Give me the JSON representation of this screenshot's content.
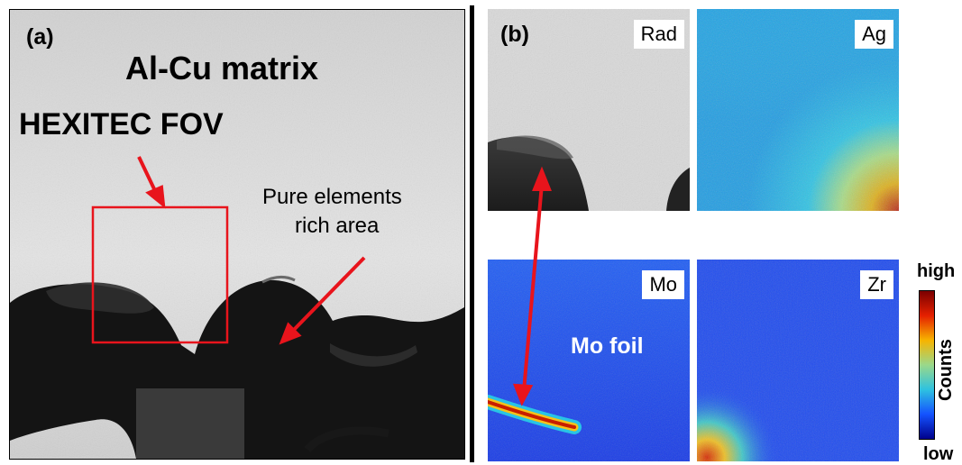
{
  "panel_a": {
    "label": "(a)",
    "title": "Al-Cu matrix",
    "fov_label": "HEXITEC FOV",
    "rich_area_line1": "Pure elements",
    "rich_area_line2": "rich area"
  },
  "panel_b": {
    "label": "(b)",
    "tiles": [
      {
        "name": "Rad"
      },
      {
        "name": "Ag"
      },
      {
        "name": "Mo"
      },
      {
        "name": "Zr"
      }
    ],
    "annotation": "Mo foil"
  },
  "colorbar": {
    "high": "high",
    "low": "low",
    "title": "Counts",
    "colors": [
      "#7a0000",
      "#e52000",
      "#f7b400",
      "#9ad88a",
      "#2ec2e0",
      "#1452ff",
      "#00008b"
    ]
  },
  "colors": {
    "arrow": "#e8141c",
    "fov_box": "#e8141c",
    "map_blue": "#1438f0",
    "map_cyan": "#1ba9e8"
  }
}
